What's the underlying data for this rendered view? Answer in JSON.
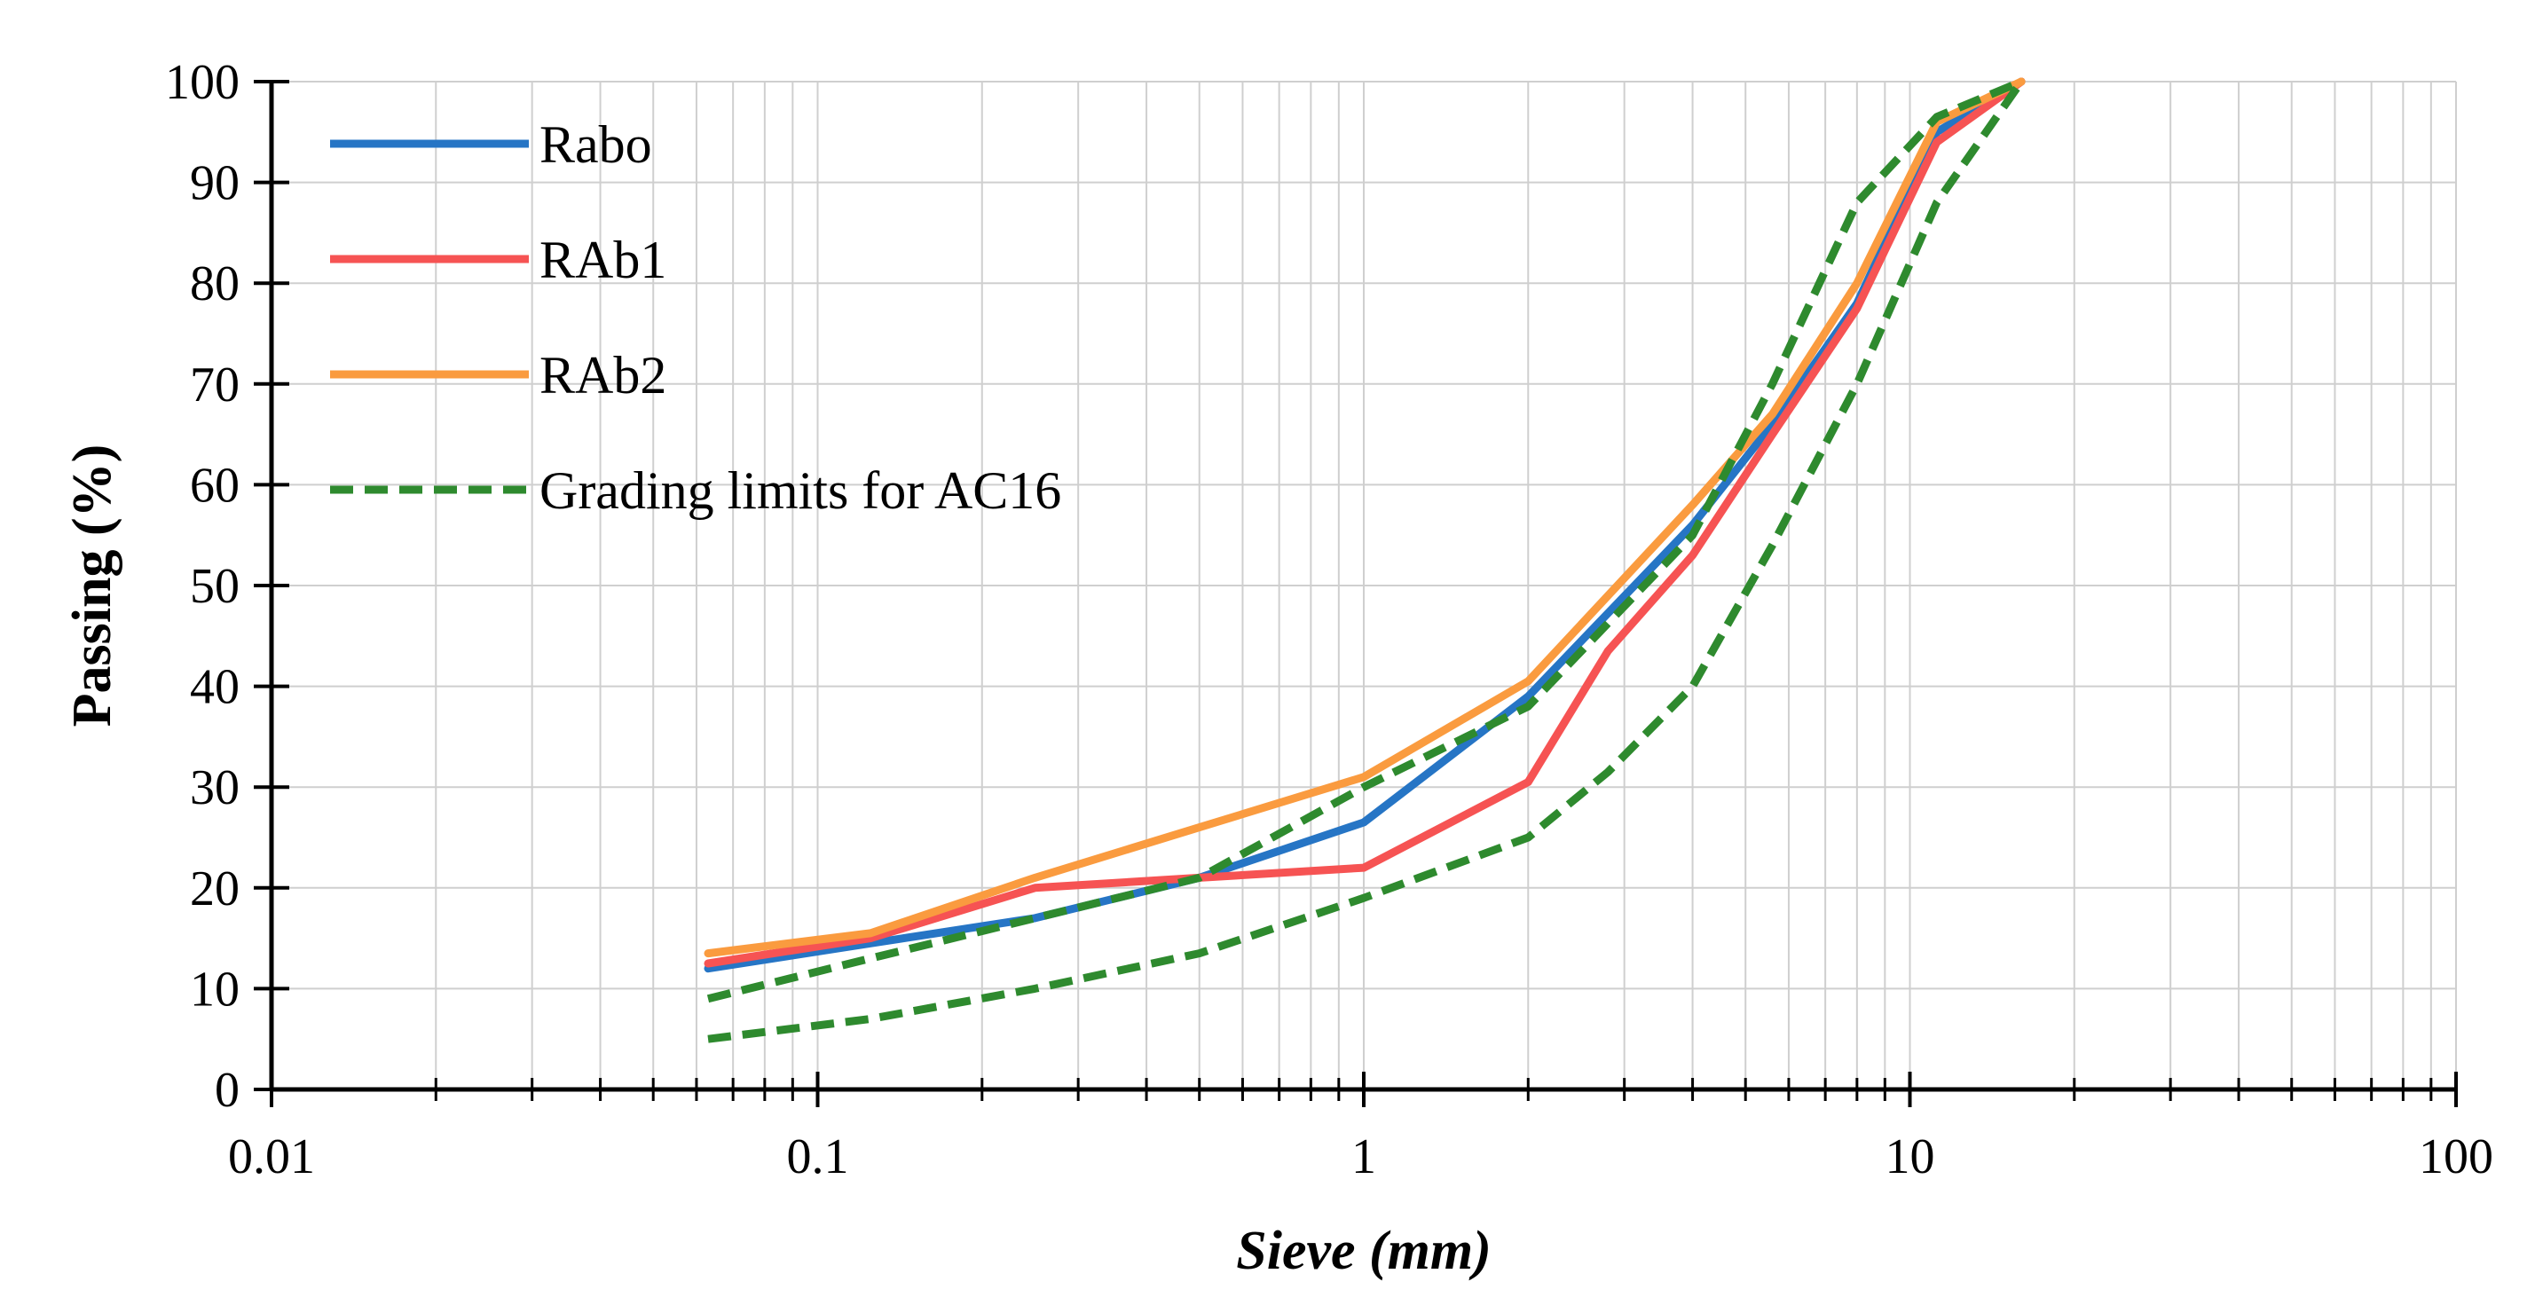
{
  "chart_data": {
    "type": "line",
    "x_scale": "log",
    "xlabel": "Sieve (mm)",
    "ylabel": "Passing (%)",
    "xlim": [
      0.01,
      100
    ],
    "ylim": [
      0,
      100
    ],
    "x_ticks": [
      0.01,
      0.1,
      1,
      10,
      100
    ],
    "x_tick_labels": [
      "0.01",
      "0.1",
      "1",
      "10",
      "100"
    ],
    "y_ticks": [
      0,
      10,
      20,
      30,
      40,
      50,
      60,
      70,
      80,
      90,
      100
    ],
    "y_tick_labels": [
      "0",
      "10",
      "20",
      "30",
      "40",
      "50",
      "60",
      "70",
      "80",
      "90",
      "100"
    ],
    "grid": true,
    "legend_position": "top-left",
    "series": [
      {
        "name": "Rabo",
        "color": "#2675C5",
        "style": "solid",
        "x": [
          0.063,
          0.125,
          0.25,
          0.5,
          1,
          2,
          4,
          5.6,
          8,
          11.2,
          16
        ],
        "y": [
          12,
          14.5,
          17,
          21,
          26.5,
          39,
          56,
          66,
          78,
          95,
          100
        ]
      },
      {
        "name": "RAb1",
        "color": "#F65353",
        "style": "solid",
        "x": [
          0.063,
          0.125,
          0.25,
          0.5,
          1,
          2,
          2.8,
          4,
          5.6,
          8,
          11.2,
          16
        ],
        "y": [
          12.5,
          15,
          20,
          21,
          22,
          30.5,
          43.5,
          53,
          65,
          77.5,
          94,
          100
        ]
      },
      {
        "name": "RAb2",
        "color": "#FA9B3F",
        "style": "solid",
        "x": [
          0.063,
          0.125,
          0.25,
          0.5,
          1,
          2,
          4,
          5.6,
          8,
          11.2,
          16
        ],
        "y": [
          13.5,
          15.5,
          21,
          26,
          31,
          40.5,
          58,
          67,
          80,
          96,
          100
        ]
      },
      {
        "name": "Grading limits for AC16",
        "color": "#2E8A2E",
        "style": "dashed",
        "x": [
          0.063,
          0.125,
          0.25,
          0.5,
          1,
          2,
          4,
          5.6,
          8,
          11.2,
          16
        ],
        "y": [
          9,
          13,
          17,
          21,
          30,
          38,
          55,
          70,
          88,
          96.5,
          100
        ]
      },
      {
        "name": "",
        "color": "#2E8A2E",
        "style": "dashed",
        "x": [
          0.063,
          0.125,
          0.25,
          0.5,
          1,
          2,
          2.8,
          4,
          5.6,
          8,
          11.2,
          16
        ],
        "y": [
          5,
          7,
          10,
          13.5,
          19,
          25,
          31.5,
          40,
          54,
          70,
          88,
          100
        ]
      }
    ]
  }
}
